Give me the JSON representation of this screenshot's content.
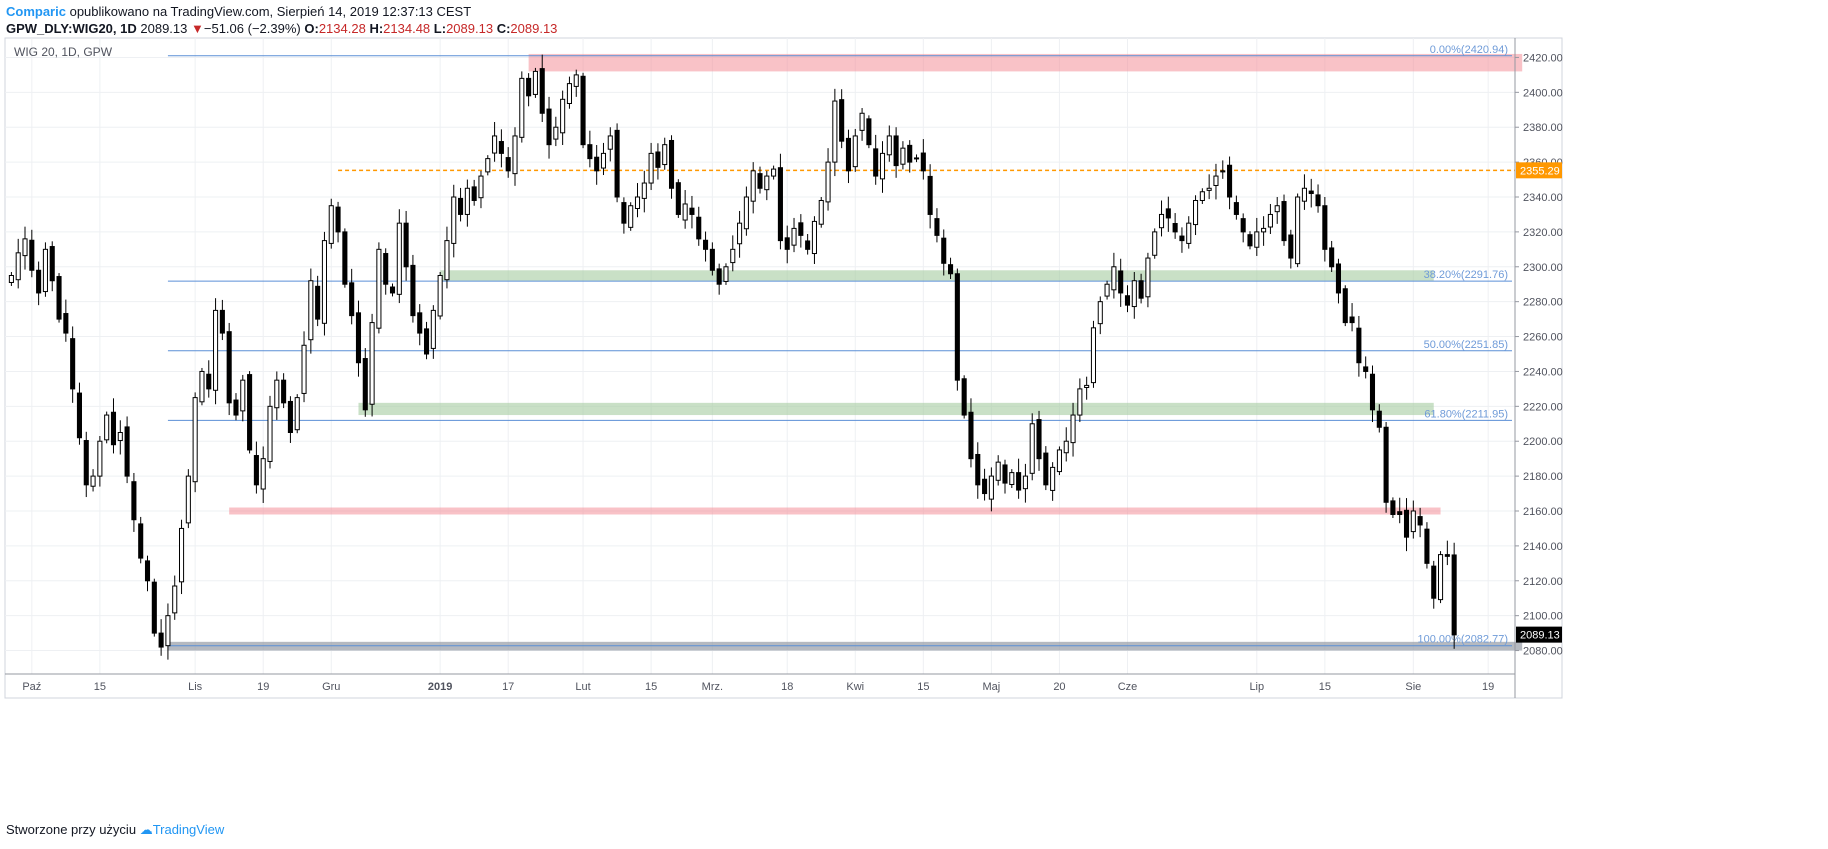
{
  "header": {
    "brand": "Comparic",
    "published_text": "opublikowano na TradingView.com, Sierpień 14, 2019 12:37:13 CEST",
    "symbol": "GPW_DLY:WIG20, 1D",
    "last": "2089.13",
    "change_arrow": "▼",
    "change": "−51.06 (−2.39%)",
    "o_label": "O:",
    "o": "2134.28",
    "h_label": "H:",
    "h": "2134.48",
    "l_label": "L:",
    "l": "2089.13",
    "c_label": "C:",
    "c": "2089.13"
  },
  "footer": {
    "text": "Stworzone przy użyciu",
    "brand": "TradingView"
  },
  "chart_data": {
    "type": "candlestick",
    "title": "WIG 20, 1D, GPW",
    "ylim": [
      2070,
      2430
    ],
    "y_ticks": [
      2080,
      2100,
      2120,
      2140,
      2160,
      2180,
      2200,
      2220,
      2240,
      2260,
      2280,
      2300,
      2320,
      2340,
      2360,
      2380,
      2400,
      2420
    ],
    "x_ticks": [
      {
        "i": 3,
        "label": "Paź"
      },
      {
        "i": 13,
        "label": "15"
      },
      {
        "i": 27,
        "label": "Lis"
      },
      {
        "i": 37,
        "label": "19"
      },
      {
        "i": 47,
        "label": "Gru"
      },
      {
        "i": 63,
        "label": "2019"
      },
      {
        "i": 73,
        "label": "17"
      },
      {
        "i": 84,
        "label": "Lut"
      },
      {
        "i": 94,
        "label": "15"
      },
      {
        "i": 103,
        "label": "Mrz."
      },
      {
        "i": 114,
        "label": "18"
      },
      {
        "i": 124,
        "label": "Kwi"
      },
      {
        "i": 134,
        "label": "15"
      },
      {
        "i": 144,
        "label": "Maj"
      },
      {
        "i": 154,
        "label": "20"
      },
      {
        "i": 164,
        "label": "Cze"
      },
      {
        "i": 183,
        "label": "Lip"
      },
      {
        "i": 193,
        "label": "15"
      },
      {
        "i": 206,
        "label": "Sie"
      },
      {
        "i": 217,
        "label": "19"
      }
    ],
    "last_price": "2089.13",
    "resistance_price": "2355.29",
    "fib_levels": [
      {
        "label": "0.00%(2420.94)",
        "value": 2420.94
      },
      {
        "label": "38.20%(2291.76)",
        "value": 2291.76
      },
      {
        "label": "50.00%(2251.85)",
        "value": 2251.85
      },
      {
        "label": "61.80%(2211.95)",
        "value": 2211.95
      },
      {
        "label": "100.00%(2082.77)",
        "value": 2082.77
      }
    ],
    "fib_range": {
      "i_start": 23,
      "i_end": 222
    },
    "resistance_line": {
      "value": 2355.29,
      "i_start": 48
    },
    "zones": [
      {
        "color": "red",
        "y1": 2412,
        "y2": 2422,
        "i1": 76,
        "i2": 222
      },
      {
        "color": "green",
        "y1": 2292,
        "y2": 2298,
        "i1": 63,
        "i2": 209
      },
      {
        "color": "green",
        "y1": 2215,
        "y2": 2222,
        "i1": 51,
        "i2": 209
      },
      {
        "color": "red",
        "y1": 2158,
        "y2": 2162,
        "i1": 32,
        "i2": 210
      },
      {
        "color": "gray",
        "y1": 2080,
        "y2": 2085,
        "i1": 23,
        "i2": 222
      }
    ],
    "closes": [
      2295,
      2308,
      2316,
      2298,
      2285,
      2310,
      2292,
      2270,
      2262,
      2230,
      2202,
      2175,
      2180,
      2200,
      2215,
      2198,
      2205,
      2180,
      2155,
      2133,
      2120,
      2090,
      2082,
      2100,
      2117,
      2150,
      2180,
      2225,
      2240,
      2230,
      2275,
      2262,
      2222,
      2215,
      2235,
      2195,
      2175,
      2190,
      2220,
      2235,
      2222,
      2205,
      2225,
      2255,
      2292,
      2270,
      2315,
      2335,
      2320,
      2290,
      2272,
      2245,
      2218,
      2268,
      2310,
      2290,
      2285,
      2325,
      2300,
      2272,
      2262,
      2250,
      2275,
      2295,
      2315,
      2340,
      2330,
      2345,
      2338,
      2352,
      2362,
      2375,
      2365,
      2355,
      2375,
      2408,
      2398,
      2412,
      2388,
      2370,
      2380,
      2396,
      2405,
      2410,
      2370,
      2362,
      2355,
      2365,
      2375,
      2340,
      2325,
      2335,
      2340,
      2348,
      2365,
      2357,
      2370,
      2345,
      2330,
      2336,
      2330,
      2316,
      2310,
      2298,
      2290,
      2300,
      2310,
      2325,
      2340,
      2355,
      2345,
      2352,
      2356,
      2315,
      2310,
      2322,
      2318,
      2310,
      2326,
      2338,
      2360,
      2395,
      2372,
      2355,
      2375,
      2388,
      2370,
      2352,
      2365,
      2375,
      2358,
      2368,
      2360,
      2362,
      2355,
      2330,
      2318,
      2302,
      2296,
      2235,
      2215,
      2190,
      2175,
      2170,
      2180,
      2188,
      2176,
      2182,
      2172,
      2180,
      2210,
      2190,
      2175,
      2185,
      2195,
      2200,
      2215,
      2230,
      2232,
      2265,
      2280,
      2290,
      2300,
      2285,
      2278,
      2292,
      2282,
      2305,
      2320,
      2330,
      2328,
      2320,
      2315,
      2325,
      2338,
      2343,
      2345,
      2352,
      2355,
      2340,
      2330,
      2320,
      2312,
      2320,
      2322,
      2330,
      2335,
      2315,
      2305,
      2340,
      2345,
      2342,
      2335,
      2310,
      2300,
      2285,
      2268,
      2268,
      2245,
      2240,
      2218,
      2208,
      2165,
      2158,
      2158,
      2145,
      2160,
      2152,
      2130,
      2110,
      2135,
      2134,
      2089
    ],
    "ohlc_note": "O:2134.28 H:2134.48 L:2089.13 C:2089.13"
  }
}
